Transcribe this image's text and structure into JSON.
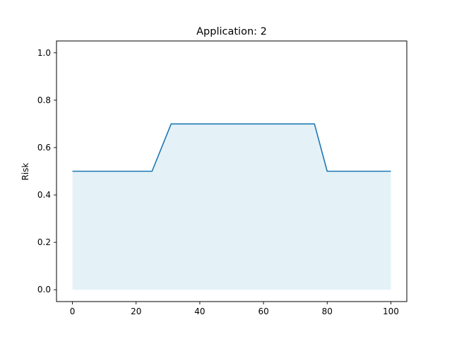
{
  "chart_data": {
    "type": "area",
    "title": "Application: 2",
    "xlabel": "",
    "ylabel": "Risk",
    "xlim": [
      -5,
      105
    ],
    "ylim": [
      -0.05,
      1.05
    ],
    "xticks": [
      0,
      20,
      40,
      60,
      80,
      100
    ],
    "yticks": [
      0.0,
      0.2,
      0.4,
      0.6,
      0.8,
      1.0
    ],
    "xtick_labels": [
      "0",
      "20",
      "40",
      "60",
      "80",
      "100"
    ],
    "ytick_labels": [
      "0.0",
      "0.2",
      "0.4",
      "0.6",
      "0.8",
      "1.0"
    ],
    "grid": false,
    "series": [
      {
        "x": [
          0,
          25,
          31,
          76,
          80,
          100
        ],
        "y": [
          0.5,
          0.5,
          0.7,
          0.7,
          0.5,
          0.5
        ],
        "line_color": "#1f77b4",
        "fill_color": "#add8e6",
        "fill_opacity": 0.33
      }
    ]
  }
}
